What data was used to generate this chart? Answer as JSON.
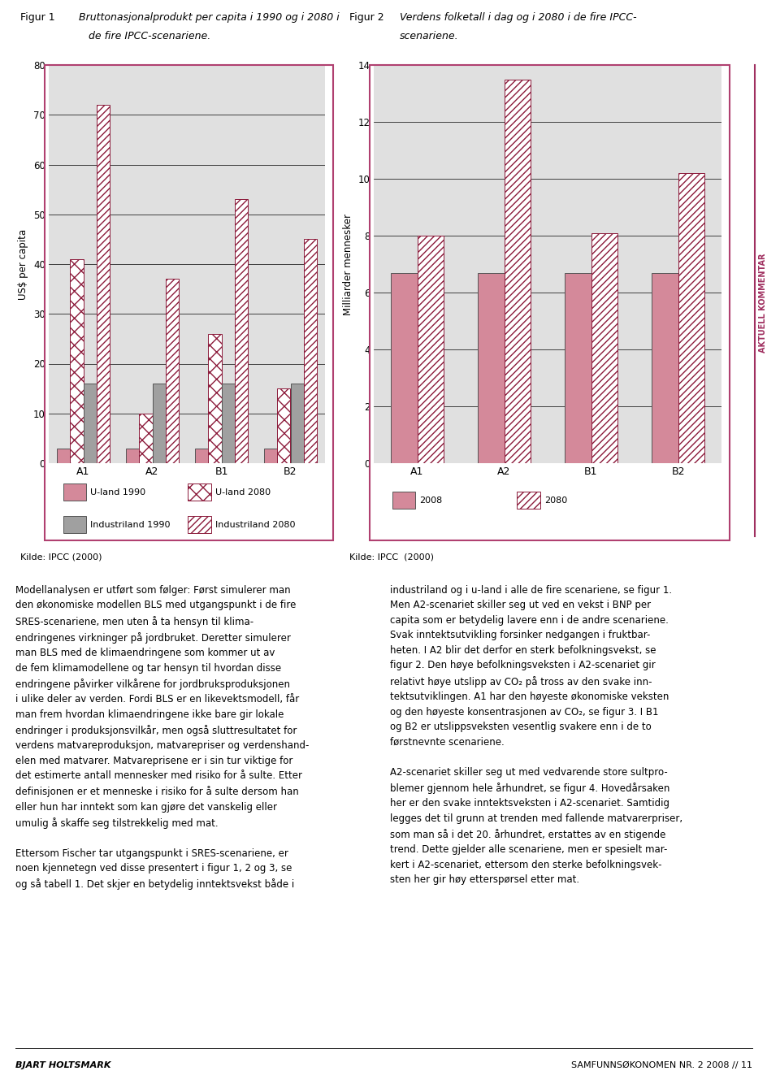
{
  "fig1": {
    "title_num": "Figur 1",
    "title_text": "Bruttonasjonalprodukt per capita i 1990 og i 2080 i\n   de fire IPCC-scenariene.",
    "ylabel": "US$ per capita",
    "ylim": [
      0,
      80
    ],
    "yticks": [
      0,
      10,
      20,
      30,
      40,
      50,
      60,
      70,
      80
    ],
    "categories": [
      "A1",
      "A2",
      "B1",
      "B2"
    ],
    "u_land_1990": [
      3,
      3,
      3,
      3
    ],
    "u_land_2080": [
      41,
      10,
      26,
      15
    ],
    "ind_1990": [
      16,
      16,
      16,
      16
    ],
    "ind_2080": [
      72,
      37,
      53,
      45
    ],
    "source": "Kilde: IPCC (2000)"
  },
  "fig2": {
    "title_num": "Figur 2",
    "title_text": "Verdens folketall i dag og i 2080 i de fire IPCC-\nscenariene.",
    "ylabel": "Milliarder mennesker",
    "ylim": [
      0,
      14
    ],
    "yticks": [
      0,
      2,
      4,
      6,
      8,
      10,
      12,
      14
    ],
    "categories": [
      "A1",
      "A2",
      "B1",
      "B2"
    ],
    "pop_2008": [
      6.7,
      6.7,
      6.7,
      6.7
    ],
    "pop_2080": [
      8.0,
      13.5,
      8.1,
      10.2
    ],
    "source": "Kilde: IPCC  (2000)"
  },
  "chart_bg": "#e0e0e0",
  "chart_border_color": "#b04070",
  "bar_pink_fc": "#d4899a",
  "bar_grey_fc": "#a0a0a0",
  "hatch_ec": "#8b1a3a",
  "dark_ec": "#555555",
  "sidebar_text": "AKTUELL KOMMENTAR",
  "sidebar_color": "#a03060",
  "text_left": "Modellanalysen er utført som følger: Først simulerer man\nden økonomiske modellen BLS med utgangspunkt i de fire\nSRES-scenariene, men uten å ta hensyn til klima-\nendringenes virkninger på jordbruket. Deretter simulerer\nman BLS med de klimaendringene som kommer ut av\nde fem klimamodellene og tar hensyn til hvordan disse\nendringene påvirker vilkårene for jordbruksproduksjonen\ni ulike deler av verden. Fordi BLS er en likevektsmodell, får\nman frem hvordan klimaendringene ikke bare gir lokale\nendringer i produksjonsvilkår, men også sluttresultatet for\nverdens matvareproduksjon, matvarepriser og verdenshand-\nelen med matvarer. Matvareprisene er i sin tur viktige for\ndet estimerte antall mennesker med risiko for å sulte. Etter\ndefinisjonen er et menneske i risiko for å sulte dersom han\neller hun har inntekt som kan gjøre det vanskelig eller\numulig å skaffe seg tilstrekkelig med mat.\n\nEttersom Fischer tar utgangspunkt i SRES-scenariene, er\nnoen kjennetegn ved disse presentert i figur 1, 2 og 3, se\nog så tabell 1. Det skjer en betydelig inntektsvekst både i",
  "text_right": "industriland og i u-land i alle de fire scenariene, se figur 1.\nMen A2-scenariet skiller seg ut ved en vekst i BNP per\ncapita som er betydelig lavere enn i de andre scenariene.\nSvak inntektsutvikling forsinker nedgangen i fruktbar-\nheten. I A2 blir det derfor en sterk befolkningsvekst, se\nfigur 2. Den høye befolkningsveksten i A2-scenariet gir\nrelativt høye utslipp av CO₂ på tross av den svake inn-\ntektsutviklingen. A1 har den høyeste økonomiske veksten\nog den høyeste konsentrasjonen av CO₂, se figur 3. I B1\nog B2 er utslippsveksten vesentlig svakere enn i de to\nførstnevnte scenariene.\n\nA2-scenariet skiller seg ut med vedvarende store sultpro-\nblemer gjennom hele århundret, se figur 4. Hovedårsaken\nher er den svake inntektsveksten i A2-scenariet. Samtidig\nlegges det til grunn at trenden med fallende matvarerpriser,\nsom man så i det 20. århundret, erstattes av en stigende\ntrend. Dette gjelder alle scenariene, men er spesielt mar-\nkert i A2-scenariet, ettersom den sterke befolkningsvek-\nsten her gir høy etterspørsel etter mat.",
  "footer_left": "BJART HOLTSMARK",
  "footer_right": "SAMFUNNSØKONOMEN NR. 2 2008 // 11"
}
